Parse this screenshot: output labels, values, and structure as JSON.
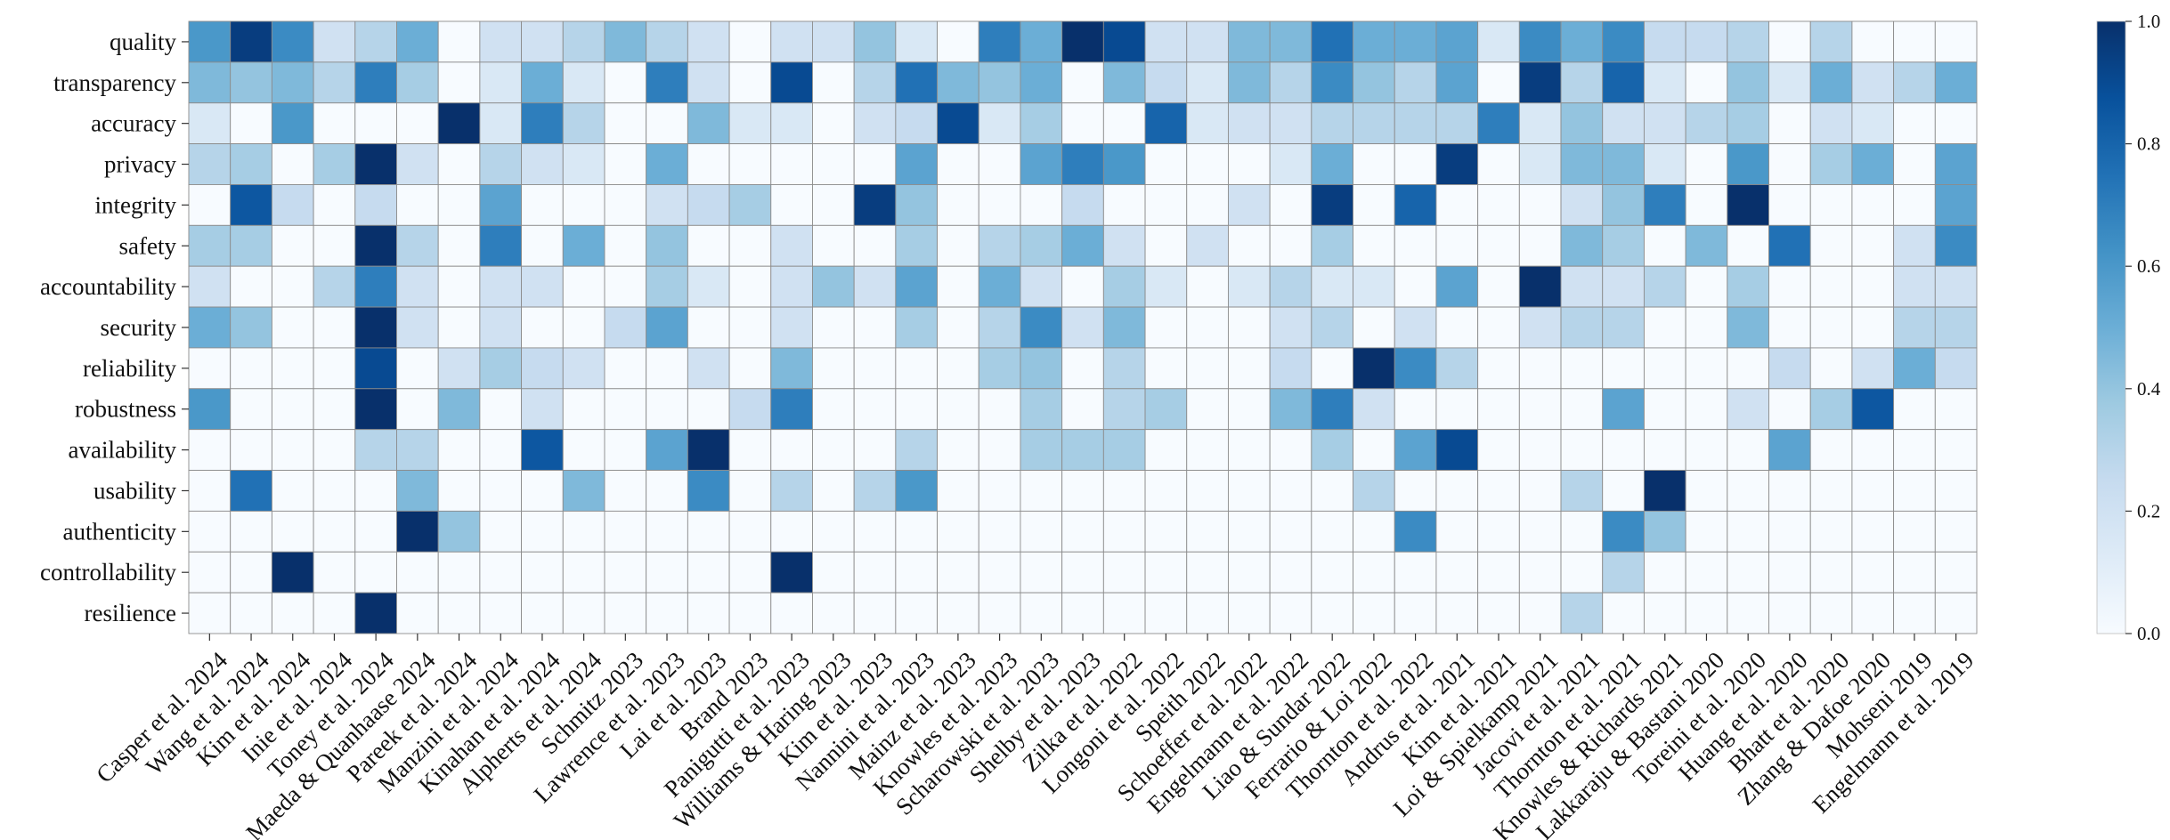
{
  "chart_data": {
    "type": "heatmap",
    "title": "",
    "xlabel": "",
    "ylabel": "",
    "rows": [
      "quality",
      "transparency",
      "accuracy",
      "privacy",
      "integrity",
      "safety",
      "accountability",
      "security",
      "reliability",
      "robustness",
      "availability",
      "usability",
      "authenticity",
      "controllability",
      "resilience"
    ],
    "columns": [
      "Casper et al. 2024",
      "Wang et al. 2024",
      "Kim et al. 2024",
      "Inie et al. 2024",
      "Toney et al. 2024",
      "Maeda & Quanhaase 2024",
      "Pareek et al. 2024",
      "Manzini et al. 2024",
      "Kinahan et al. 2024",
      "Alpherts et al. 2024",
      "Schmitz 2023",
      "Lawrence et al. 2023",
      "Lai et al. 2023",
      "Brand 2023",
      "Panigutti et al. 2023",
      "Williams & Haring 2023",
      "Kim et al. 2023",
      "Nannini et al. 2023",
      "Mainz et al. 2023",
      "Knowles et al. 2023",
      "Scharowski et al. 2023",
      "Shelby et al. 2023",
      "Zilka et al. 2022",
      "Longoni et al. 2022",
      "Speith 2022",
      "Schoeffer et al. 2022",
      "Engelmann et al. 2022",
      "Liao & Sundar 2022",
      "Ferrario & Loi 2022",
      "Thornton et al. 2022",
      "Andrus et al. 2021",
      "Kim et al. 2021",
      "Loi & Spielkamp 2021",
      "Jacovi et al. 2021",
      "Thornton et al. 2021",
      "Knowles & Richards 2021",
      "Lakkaraju & Bastani 2020",
      "Toreini et al. 2020",
      "Huang et al. 2020",
      "Bhatt et al. 2020",
      "Zhang & Dafoe 2020",
      "Mohseni 2019",
      "Engelmann et al. 2019"
    ],
    "values": [
      [
        0.6,
        0.95,
        0.65,
        0.2,
        0.3,
        0.5,
        0.0,
        0.2,
        0.2,
        0.3,
        0.45,
        0.3,
        0.2,
        0.0,
        0.2,
        0.2,
        0.4,
        0.15,
        0.0,
        0.7,
        0.5,
        1.0,
        0.9,
        0.2,
        0.2,
        0.45,
        0.45,
        0.75,
        0.5,
        0.5,
        0.55,
        0.15,
        0.65,
        0.5,
        0.65,
        0.25,
        0.25,
        0.3,
        0.0,
        0.3,
        0.0,
        0.0,
        0.0
      ],
      [
        0.45,
        0.4,
        0.45,
        0.3,
        0.7,
        0.35,
        0.0,
        0.15,
        0.5,
        0.15,
        0.0,
        0.7,
        0.2,
        0.0,
        0.9,
        0.0,
        0.3,
        0.75,
        0.45,
        0.4,
        0.5,
        0.0,
        0.45,
        0.25,
        0.15,
        0.45,
        0.3,
        0.65,
        0.4,
        0.3,
        0.55,
        0.0,
        0.95,
        0.3,
        0.8,
        0.15,
        0.0,
        0.4,
        0.15,
        0.5,
        0.2,
        0.3,
        0.5
      ],
      [
        0.15,
        0.0,
        0.6,
        0.0,
        0.0,
        0.0,
        1.0,
        0.15,
        0.7,
        0.3,
        0.0,
        0.0,
        0.45,
        0.15,
        0.15,
        0.0,
        0.2,
        0.25,
        0.9,
        0.15,
        0.35,
        0.0,
        0.0,
        0.8,
        0.15,
        0.2,
        0.2,
        0.3,
        0.3,
        0.3,
        0.3,
        0.7,
        0.15,
        0.4,
        0.2,
        0.2,
        0.3,
        0.35,
        0.0,
        0.2,
        0.15,
        0.0,
        0.0
      ],
      [
        0.3,
        0.35,
        0.0,
        0.35,
        1.0,
        0.2,
        0.0,
        0.3,
        0.2,
        0.15,
        0.0,
        0.5,
        0.0,
        0.0,
        0.0,
        0.0,
        0.0,
        0.55,
        0.0,
        0.0,
        0.55,
        0.7,
        0.6,
        0.0,
        0.0,
        0.0,
        0.15,
        0.5,
        0.0,
        0.0,
        0.95,
        0.0,
        0.15,
        0.45,
        0.45,
        0.15,
        0.0,
        0.6,
        0.0,
        0.35,
        0.5,
        0.0,
        0.55
      ],
      [
        0.0,
        0.85,
        0.25,
        0.0,
        0.25,
        0.0,
        0.0,
        0.55,
        0.0,
        0.0,
        0.0,
        0.2,
        0.25,
        0.35,
        0.0,
        0.0,
        0.95,
        0.4,
        0.0,
        0.0,
        0.0,
        0.25,
        0.0,
        0.0,
        0.0,
        0.2,
        0.0,
        0.95,
        0.0,
        0.8,
        0.0,
        0.0,
        0.0,
        0.2,
        0.4,
        0.7,
        0.0,
        1.0,
        0.0,
        0.0,
        0.0,
        0.0,
        0.55
      ],
      [
        0.35,
        0.35,
        0.0,
        0.0,
        1.0,
        0.3,
        0.0,
        0.7,
        0.0,
        0.5,
        0.0,
        0.4,
        0.0,
        0.0,
        0.2,
        0.0,
        0.0,
        0.35,
        0.0,
        0.3,
        0.35,
        0.5,
        0.2,
        0.0,
        0.2,
        0.0,
        0.0,
        0.35,
        0.0,
        0.0,
        0.0,
        0.0,
        0.0,
        0.45,
        0.35,
        0.0,
        0.45,
        0.0,
        0.75,
        0.0,
        0.0,
        0.2,
        0.65
      ],
      [
        0.2,
        0.0,
        0.0,
        0.3,
        0.7,
        0.2,
        0.0,
        0.2,
        0.2,
        0.0,
        0.0,
        0.35,
        0.15,
        0.0,
        0.2,
        0.4,
        0.2,
        0.55,
        0.0,
        0.5,
        0.2,
        0.0,
        0.35,
        0.15,
        0.0,
        0.15,
        0.3,
        0.15,
        0.15,
        0.0,
        0.55,
        0.0,
        1.0,
        0.2,
        0.2,
        0.3,
        0.0,
        0.35,
        0.0,
        0.0,
        0.0,
        0.2,
        0.2
      ],
      [
        0.5,
        0.4,
        0.0,
        0.0,
        1.0,
        0.2,
        0.0,
        0.2,
        0.0,
        0.0,
        0.25,
        0.55,
        0.0,
        0.0,
        0.2,
        0.0,
        0.0,
        0.35,
        0.0,
        0.3,
        0.65,
        0.2,
        0.45,
        0.0,
        0.0,
        0.0,
        0.2,
        0.3,
        0.0,
        0.2,
        0.0,
        0.0,
        0.2,
        0.3,
        0.3,
        0.0,
        0.0,
        0.45,
        0.0,
        0.0,
        0.0,
        0.3,
        0.3
      ],
      [
        0.0,
        0.0,
        0.0,
        0.0,
        0.9,
        0.0,
        0.2,
        0.35,
        0.25,
        0.2,
        0.0,
        0.0,
        0.2,
        0.0,
        0.45,
        0.0,
        0.0,
        0.0,
        0.0,
        0.35,
        0.4,
        0.0,
        0.3,
        0.0,
        0.0,
        0.0,
        0.25,
        0.0,
        1.0,
        0.65,
        0.3,
        0.0,
        0.0,
        0.0,
        0.0,
        0.0,
        0.0,
        0.0,
        0.25,
        0.0,
        0.2,
        0.5,
        0.25
      ],
      [
        0.6,
        0.0,
        0.0,
        0.0,
        1.0,
        0.0,
        0.45,
        0.0,
        0.2,
        0.0,
        0.0,
        0.0,
        0.0,
        0.25,
        0.7,
        0.0,
        0.0,
        0.0,
        0.0,
        0.0,
        0.35,
        0.0,
        0.3,
        0.35,
        0.0,
        0.0,
        0.45,
        0.7,
        0.2,
        0.0,
        0.0,
        0.0,
        0.0,
        0.0,
        0.55,
        0.0,
        0.0,
        0.2,
        0.0,
        0.35,
        0.85,
        0.0,
        0.0
      ],
      [
        0.0,
        0.0,
        0.0,
        0.0,
        0.3,
        0.3,
        0.0,
        0.0,
        0.85,
        0.0,
        0.0,
        0.55,
        1.0,
        0.0,
        0.0,
        0.0,
        0.0,
        0.3,
        0.0,
        0.0,
        0.35,
        0.35,
        0.35,
        0.0,
        0.0,
        0.0,
        0.0,
        0.35,
        0.0,
        0.55,
        0.9,
        0.0,
        0.0,
        0.0,
        0.0,
        0.0,
        0.0,
        0.0,
        0.55,
        0.0,
        0.0,
        0.0,
        0.0
      ],
      [
        0.0,
        0.75,
        0.0,
        0.0,
        0.0,
        0.45,
        0.0,
        0.0,
        0.0,
        0.45,
        0.0,
        0.0,
        0.65,
        0.0,
        0.3,
        0.0,
        0.3,
        0.6,
        0.0,
        0.0,
        0.0,
        0.0,
        0.0,
        0.0,
        0.0,
        0.0,
        0.0,
        0.0,
        0.3,
        0.0,
        0.0,
        0.0,
        0.0,
        0.3,
        0.0,
        1.0,
        0.0,
        0.0,
        0.0,
        0.0,
        0.0,
        0.0,
        0.0
      ],
      [
        0.0,
        0.0,
        0.0,
        0.0,
        0.0,
        1.0,
        0.4,
        0.0,
        0.0,
        0.0,
        0.0,
        0.0,
        0.0,
        0.0,
        0.0,
        0.0,
        0.0,
        0.0,
        0.0,
        0.0,
        0.0,
        0.0,
        0.0,
        0.0,
        0.0,
        0.0,
        0.0,
        0.0,
        0.0,
        0.65,
        0.0,
        0.0,
        0.0,
        0.0,
        0.65,
        0.4,
        0.0,
        0.0,
        0.0,
        0.0,
        0.0,
        0.0,
        0.0
      ],
      [
        0.0,
        0.0,
        1.0,
        0.0,
        0.0,
        0.0,
        0.0,
        0.0,
        0.0,
        0.0,
        0.0,
        0.0,
        0.0,
        0.0,
        1.0,
        0.0,
        0.0,
        0.0,
        0.0,
        0.0,
        0.0,
        0.0,
        0.0,
        0.0,
        0.0,
        0.0,
        0.0,
        0.0,
        0.0,
        0.0,
        0.0,
        0.0,
        0.0,
        0.0,
        0.3,
        0.0,
        0.0,
        0.0,
        0.0,
        0.0,
        0.0,
        0.0,
        0.0
      ],
      [
        0.0,
        0.0,
        0.0,
        0.0,
        1.0,
        0.0,
        0.0,
        0.0,
        0.0,
        0.0,
        0.0,
        0.0,
        0.0,
        0.0,
        0.0,
        0.0,
        0.0,
        0.0,
        0.0,
        0.0,
        0.0,
        0.0,
        0.0,
        0.0,
        0.0,
        0.0,
        0.0,
        0.0,
        0.0,
        0.0,
        0.0,
        0.0,
        0.0,
        0.3,
        0.0,
        0.0,
        0.0,
        0.0,
        0.0,
        0.0,
        0.0,
        0.0,
        0.0
      ]
    ],
    "vmin": 0.0,
    "vmax": 1.0,
    "colormap": "Blues",
    "colorbar_ticks": [
      0.0,
      0.2,
      0.4,
      0.6,
      0.8,
      1.0
    ],
    "colorbar_tick_labels": [
      "0.0",
      "0.2",
      "0.4",
      "0.6",
      "0.8",
      "1.0"
    ],
    "grid": true,
    "grid_color": "#8c8c8c"
  }
}
